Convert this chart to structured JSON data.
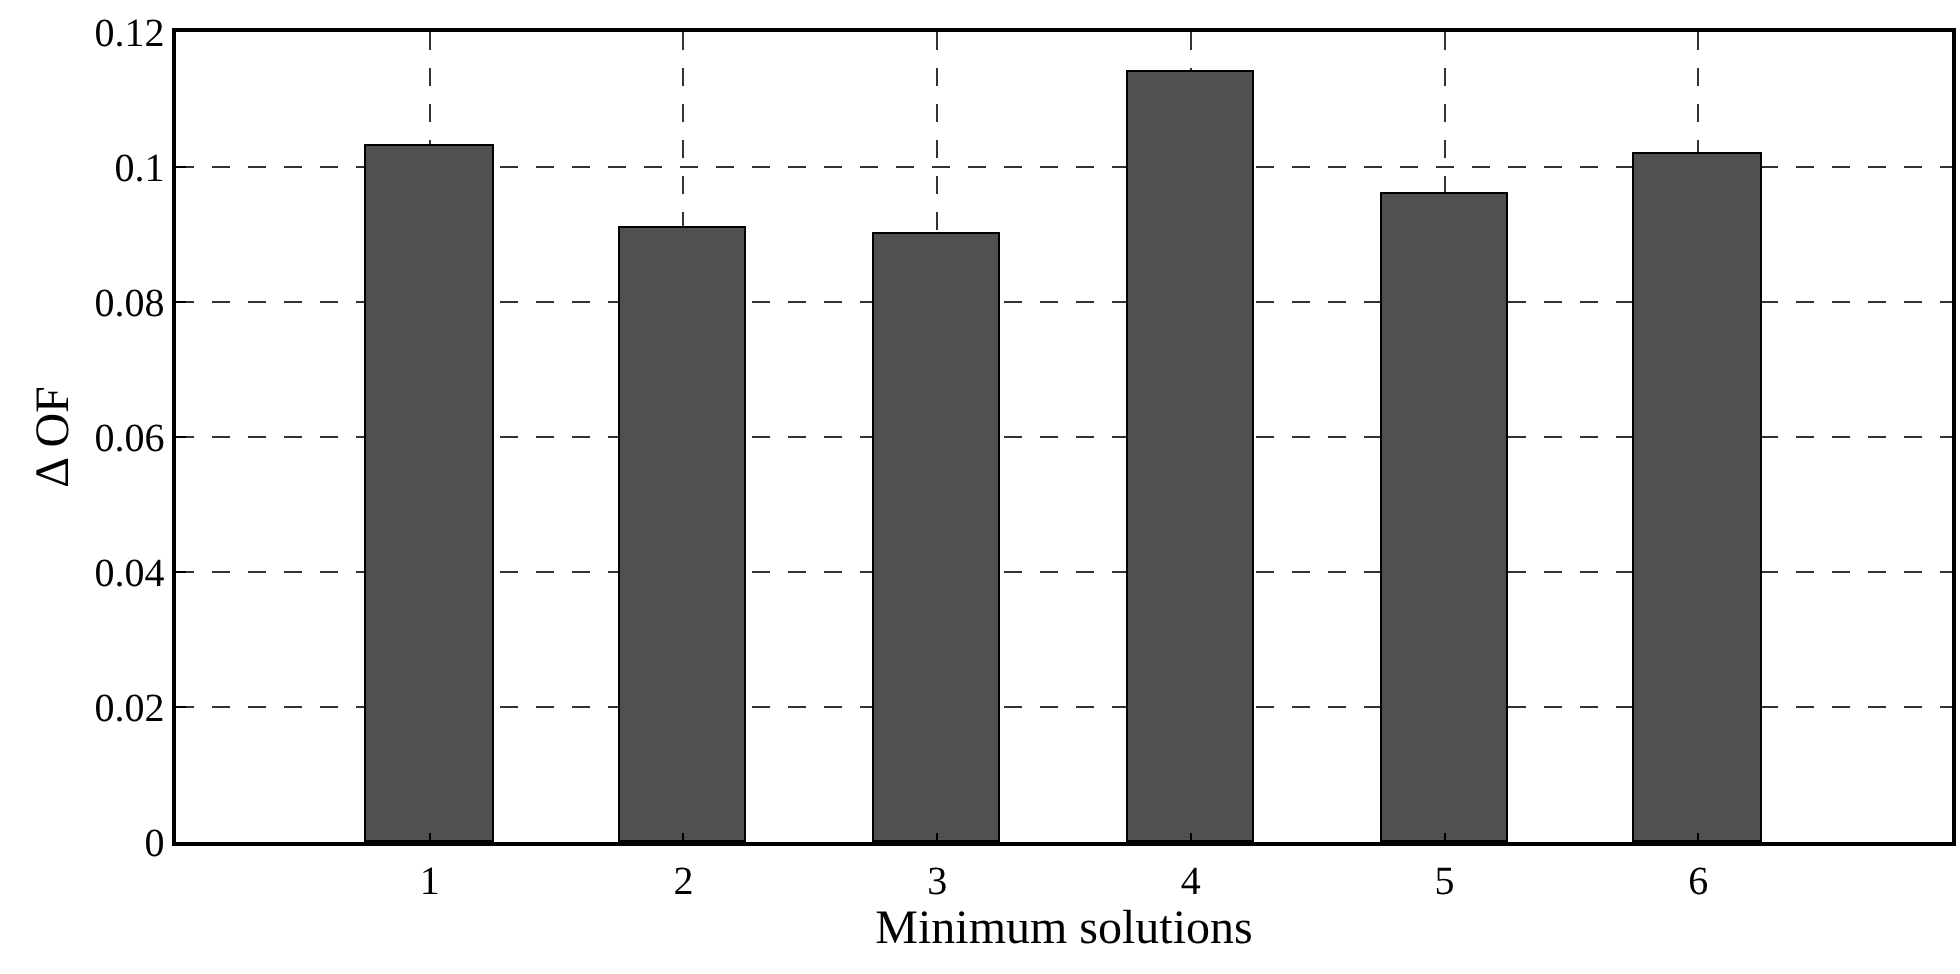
{
  "chart_data": {
    "type": "bar",
    "xlabel": "Minimum solutions",
    "ylabel": "Δ OF",
    "categories": [
      "1",
      "2",
      "3",
      "4",
      "5",
      "6"
    ],
    "values": [
      0.103,
      0.091,
      0.09,
      0.114,
      0.096,
      0.102
    ],
    "color": "#505050",
    "ylim": [
      0,
      0.12
    ],
    "yticks": [
      0,
      0.02,
      0.04,
      0.06,
      0.08,
      {
        "value": 0.1,
        "label": "0.1"
      },
      0.12
    ],
    "grid": true
  }
}
